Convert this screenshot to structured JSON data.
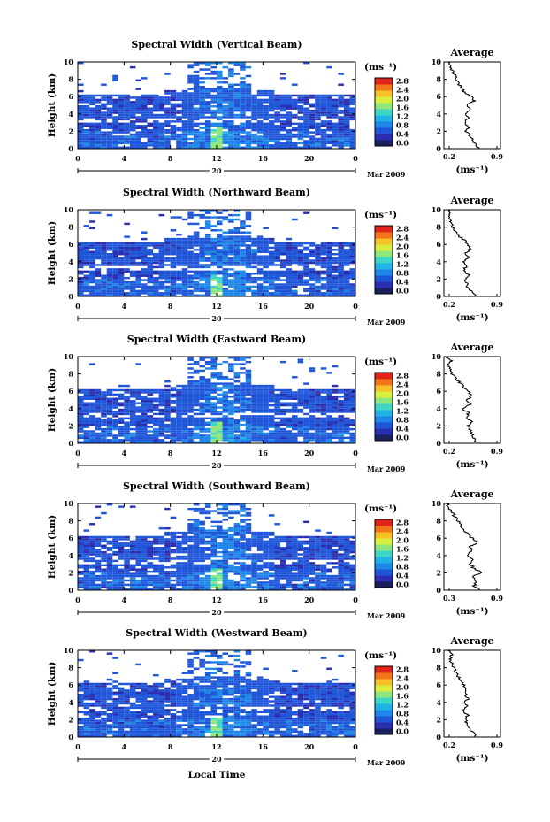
{
  "figure": {
    "x_axis_label": "Local Time",
    "date_label": "Mar 2009",
    "day_label": "20",
    "colorbar_unit": "(ms⁻¹)",
    "colorbar_ticks": [
      "0.0",
      "0.4",
      "0.8",
      "1.2",
      "1.6",
      "2.0",
      "2.4",
      "2.8"
    ],
    "avg_title": "Average",
    "avg_unit": "(ms⁻¹)",
    "colors": [
      "#1a1f5e",
      "#2a2eb0",
      "#1f55d8",
      "#1d86e6",
      "#21b3e8",
      "#3fd6c6",
      "#8fe67a",
      "#d8ee3c",
      "#f6c326",
      "#f3741b",
      "#e2231a"
    ]
  },
  "chart_data": [
    {
      "type": "heatmap",
      "title": "Spectral Width (Vertical Beam)",
      "ylabel": "Height (km)",
      "xlim": [
        0,
        24
      ],
      "ylim": [
        0,
        10
      ],
      "x_ticks": [
        "0",
        "4",
        "8",
        "12",
        "16",
        "20",
        "0"
      ],
      "y_ticks": [
        "0",
        "2",
        "4",
        "6",
        "8",
        "10"
      ],
      "colorbar_range": [
        0.0,
        2.8
      ],
      "average_profile": {
        "xlim_labels": [
          "0.2",
          "0.9"
        ],
        "xlim": [
          0.2,
          0.9
        ],
        "height": [
          0,
          0.5,
          1,
          1.5,
          2,
          2.5,
          3,
          3.5,
          4,
          4.5,
          5,
          5.5,
          6,
          6.5,
          7,
          7.5,
          8,
          8.5,
          9,
          9.5,
          10
        ],
        "value": [
          0.62,
          0.6,
          0.55,
          0.52,
          0.48,
          0.5,
          0.45,
          0.5,
          0.46,
          0.52,
          0.48,
          0.58,
          0.55,
          0.45,
          0.42,
          0.38,
          0.35,
          0.33,
          0.3,
          0.28,
          0.25
        ]
      }
    },
    {
      "type": "heatmap",
      "title": "Spectral Width (Northward Beam)",
      "ylabel": "Height (km)",
      "xlim": [
        0,
        24
      ],
      "ylim": [
        0,
        10
      ],
      "x_ticks": [
        "0",
        "4",
        "8",
        "12",
        "16",
        "20",
        "0"
      ],
      "y_ticks": [
        "0",
        "2",
        "4",
        "6",
        "8",
        "10"
      ],
      "colorbar_range": [
        0.0,
        2.8
      ],
      "average_profile": {
        "xlim_labels": [
          "0.2",
          "0.9"
        ],
        "xlim": [
          0.2,
          0.9
        ],
        "height": [
          0,
          0.5,
          1,
          1.5,
          2,
          2.5,
          3,
          3.5,
          4,
          4.5,
          5,
          5.5,
          6,
          6.5,
          7,
          7.5,
          8,
          8.5,
          9,
          9.5,
          10
        ],
        "value": [
          0.58,
          0.55,
          0.5,
          0.48,
          0.46,
          0.5,
          0.44,
          0.48,
          0.45,
          0.5,
          0.47,
          0.52,
          0.5,
          0.45,
          0.38,
          0.34,
          0.3,
          0.3,
          0.26,
          0.28,
          0.25
        ]
      }
    },
    {
      "type": "heatmap",
      "title": "Spectral Width (Eastward Beam)",
      "ylabel": "Height (km)",
      "xlim": [
        0,
        24
      ],
      "ylim": [
        0,
        10
      ],
      "x_ticks": [
        "0",
        "4",
        "8",
        "12",
        "16",
        "20",
        "0"
      ],
      "y_ticks": [
        "0",
        "2",
        "4",
        "6",
        "8",
        "10"
      ],
      "colorbar_range": [
        0.0,
        2.8
      ],
      "average_profile": {
        "xlim_labels": [
          "0.2",
          "0.9"
        ],
        "xlim": [
          0.2,
          0.9
        ],
        "height": [
          0,
          0.5,
          1,
          1.5,
          2,
          2.5,
          3,
          3.5,
          4,
          4.5,
          5,
          5.5,
          6,
          6.5,
          7,
          7.5,
          8,
          8.5,
          9,
          9.5,
          10
        ],
        "value": [
          0.6,
          0.58,
          0.55,
          0.52,
          0.5,
          0.54,
          0.48,
          0.5,
          0.44,
          0.52,
          0.48,
          0.55,
          0.5,
          0.45,
          0.4,
          0.35,
          0.3,
          0.28,
          0.25,
          0.3,
          0.22
        ]
      }
    },
    {
      "type": "heatmap",
      "title": "Spectral Width (Southward Beam)",
      "ylabel": "Height (km)",
      "xlim": [
        0,
        24
      ],
      "ylim": [
        0,
        10
      ],
      "x_ticks": [
        "0",
        "4",
        "8",
        "12",
        "16",
        "20",
        "0"
      ],
      "y_ticks": [
        "0",
        "2",
        "4",
        "6",
        "8",
        "10"
      ],
      "colorbar_range": [
        0.0,
        2.8
      ],
      "average_profile": {
        "xlim_labels": [
          "0.3",
          "0.9"
        ],
        "xlim": [
          0.3,
          0.9
        ],
        "height": [
          0,
          0.5,
          1,
          1.5,
          2,
          2.5,
          3,
          3.5,
          4,
          4.5,
          5,
          5.5,
          6,
          6.5,
          7,
          7.5,
          8,
          8.5,
          9,
          9.5,
          10
        ],
        "value": [
          0.68,
          0.62,
          0.65,
          0.6,
          0.7,
          0.62,
          0.58,
          0.6,
          0.55,
          0.6,
          0.58,
          0.65,
          0.6,
          0.55,
          0.5,
          0.48,
          0.45,
          0.42,
          0.38,
          0.35,
          0.33
        ]
      }
    },
    {
      "type": "heatmap",
      "title": "Spectral Width (Westward Beam)",
      "ylabel": "Height (km)",
      "xlim": [
        0,
        24
      ],
      "ylim": [
        0,
        10
      ],
      "x_ticks": [
        "0",
        "4",
        "8",
        "12",
        "16",
        "20",
        "0"
      ],
      "y_ticks": [
        "0",
        "2",
        "4",
        "6",
        "8",
        "10"
      ],
      "colorbar_range": [
        0.0,
        2.8
      ],
      "average_profile": {
        "xlim_labels": [
          "0.2",
          "0.9"
        ],
        "xlim": [
          0.2,
          0.9
        ],
        "height": [
          0,
          0.5,
          1,
          1.5,
          2,
          2.5,
          3,
          3.5,
          4,
          4.5,
          5,
          5.5,
          6,
          6.5,
          7,
          7.5,
          8,
          8.5,
          9,
          9.5,
          10
        ],
        "value": [
          0.6,
          0.56,
          0.52,
          0.5,
          0.46,
          0.5,
          0.44,
          0.48,
          0.46,
          0.5,
          0.46,
          0.48,
          0.45,
          0.42,
          0.38,
          0.35,
          0.32,
          0.3,
          0.28,
          0.3,
          0.25
        ]
      }
    }
  ]
}
